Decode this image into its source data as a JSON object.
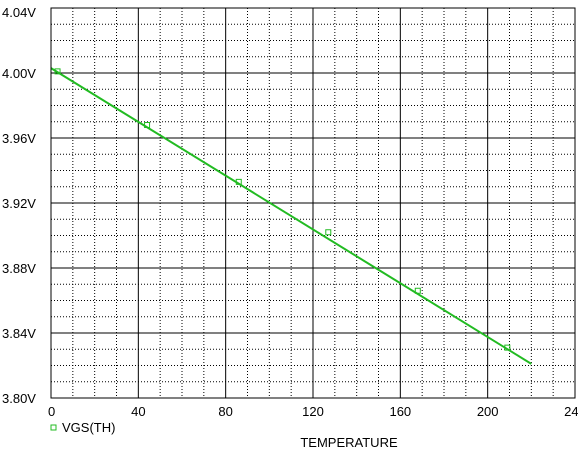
{
  "chart_data": {
    "type": "line",
    "xlabel": "TEMPERATURE",
    "x_ticks": [
      "0",
      "40",
      "80",
      "120",
      "160",
      "200",
      "240"
    ],
    "y_ticks": [
      "3.80V",
      "3.84V",
      "3.88V",
      "3.92V",
      "3.96V",
      "4.00V",
      "4.04V"
    ],
    "xlim": [
      0,
      240
    ],
    "ylim": [
      3.8,
      4.04
    ],
    "grid": true,
    "legend_position": "bottom-left",
    "series": [
      {
        "name": "VGS(TH)",
        "color": "#22bb22",
        "marker": "square",
        "x": [
          0,
          220
        ],
        "y": [
          4.003,
          3.821
        ],
        "marker_x": [
          3,
          44,
          86,
          127,
          168,
          209
        ],
        "marker_y": [
          4.001,
          3.968,
          3.933,
          3.902,
          3.866,
          3.831
        ]
      }
    ]
  }
}
